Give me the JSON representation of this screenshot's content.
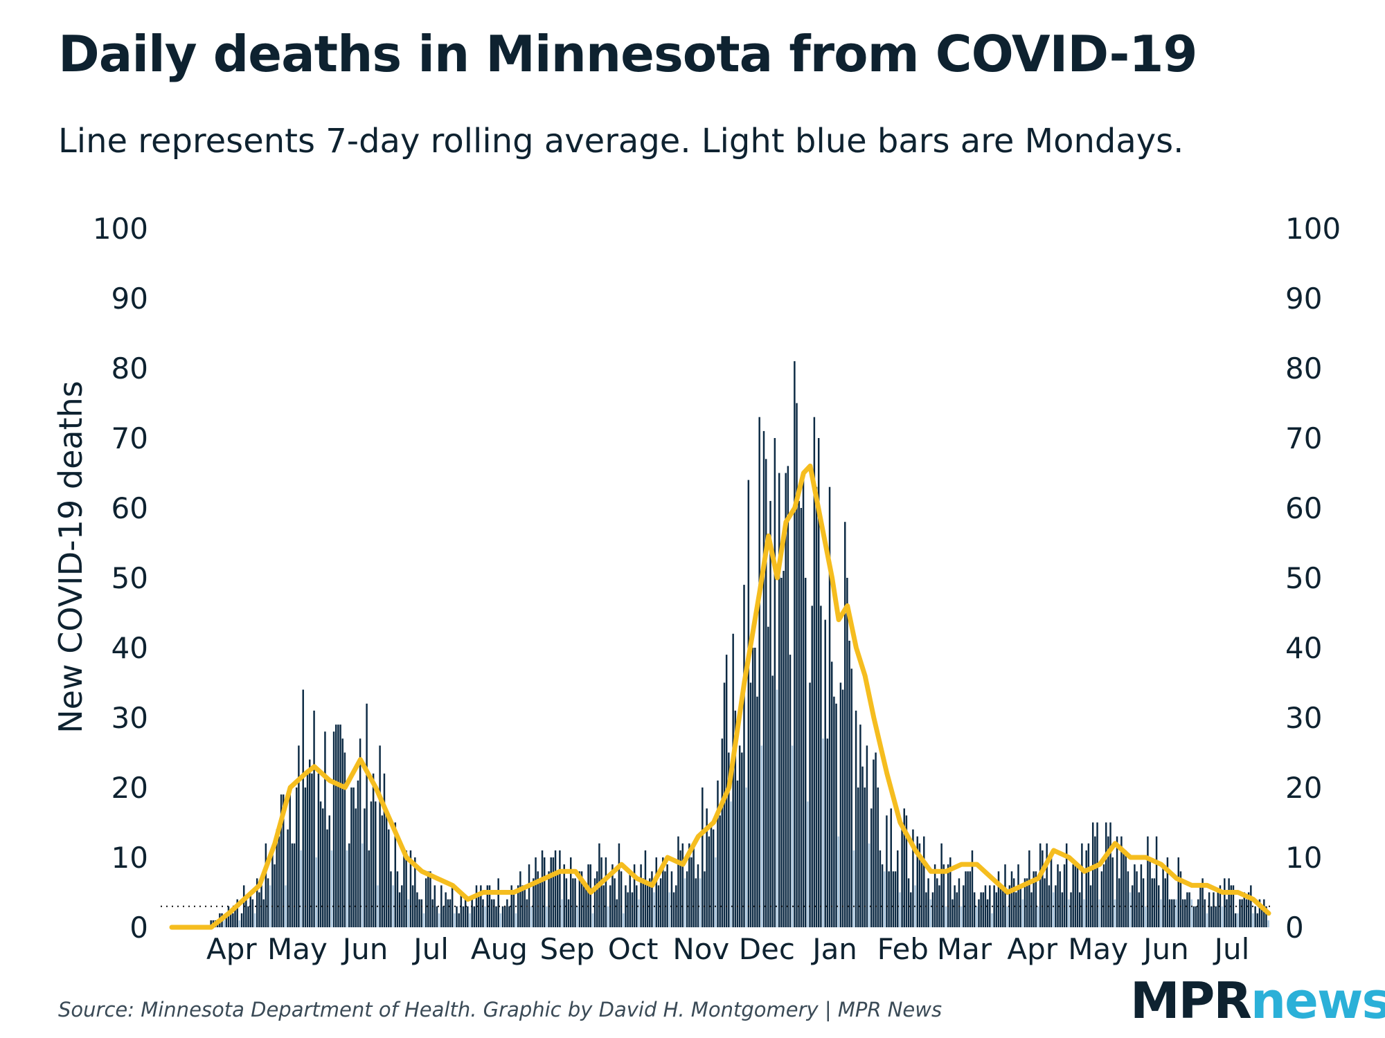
{
  "title": "Daily deaths in Minnesota from COVID-19",
  "subtitle": "Line represents 7-day rolling average. Light blue bars are Mondays.",
  "source": "Source: Minnesota Department of Health. Graphic by David H. Montgomery | MPR News",
  "logo": {
    "mpr": "MPR",
    "news": "news"
  },
  "colors": {
    "bar": "#0c2a44",
    "monday_bar": "#a9c6df",
    "line": "#f5bd1f",
    "text": "#0e2230",
    "logo_accent": "#2bb0d8"
  },
  "chart_data": {
    "type": "bar",
    "ylabel": "New COVID-19 deaths",
    "ylim": [
      0,
      100
    ],
    "yticks": [
      0,
      10,
      20,
      30,
      40,
      50,
      60,
      70,
      80,
      90,
      100
    ],
    "secondary_yaxis": true,
    "x_tick_labels": [
      "Apr",
      "May",
      "Jun",
      "Jul",
      "Aug",
      "Sep",
      "Oct",
      "Nov",
      "Dec",
      "Jan",
      "Feb",
      "Mar",
      "Apr",
      "May",
      "Jun",
      "Jul"
    ],
    "x_tick_dates": [
      "2020-04-01",
      "2020-05-01",
      "2020-06-01",
      "2020-07-01",
      "2020-08-01",
      "2020-09-01",
      "2020-10-01",
      "2020-11-01",
      "2020-12-01",
      "2021-01-01",
      "2021-02-01",
      "2021-03-01",
      "2021-04-01",
      "2021-05-01",
      "2021-06-01",
      "2021-07-01"
    ],
    "date_range": [
      "2020-03-06",
      "2021-07-19"
    ],
    "reference_line": {
      "y": 3,
      "style": "dotted"
    },
    "series": [
      {
        "kind": "bar",
        "anchors": [
          [
            "2020-03-06",
            0
          ],
          [
            "2020-03-20",
            0
          ],
          [
            "2020-03-25",
            1
          ],
          [
            "2020-04-01",
            2
          ],
          [
            "2020-04-08",
            4
          ],
          [
            "2020-04-15",
            6
          ],
          [
            "2020-04-22",
            12
          ],
          [
            "2020-04-29",
            20
          ],
          [
            "2020-05-06",
            24
          ],
          [
            "2020-05-13",
            23
          ],
          [
            "2020-05-20",
            20
          ],
          [
            "2020-05-27",
            24
          ],
          [
            "2020-06-03",
            22
          ],
          [
            "2020-06-10",
            17
          ],
          [
            "2020-06-17",
            10
          ],
          [
            "2020-06-24",
            8
          ],
          [
            "2020-07-01",
            6
          ],
          [
            "2020-07-08",
            6
          ],
          [
            "2020-07-15",
            4
          ],
          [
            "2020-07-22",
            5
          ],
          [
            "2020-07-29",
            5
          ],
          [
            "2020-08-05",
            5
          ],
          [
            "2020-08-12",
            6
          ],
          [
            "2020-08-19",
            7
          ],
          [
            "2020-08-26",
            8
          ],
          [
            "2020-09-02",
            7
          ],
          [
            "2020-09-09",
            6
          ],
          [
            "2020-09-16",
            8
          ],
          [
            "2020-09-23",
            9
          ],
          [
            "2020-09-30",
            7
          ],
          [
            "2020-10-07",
            8
          ],
          [
            "2020-10-14",
            10
          ],
          [
            "2020-10-21",
            10
          ],
          [
            "2020-10-28",
            13
          ],
          [
            "2020-11-04",
            15
          ],
          [
            "2020-11-11",
            22
          ],
          [
            "2020-11-18",
            34
          ],
          [
            "2020-11-25",
            45
          ],
          [
            "2020-12-01",
            55
          ],
          [
            "2020-12-07",
            58
          ],
          [
            "2020-12-13",
            63
          ],
          [
            "2020-12-19",
            58
          ],
          [
            "2020-12-25",
            50
          ],
          [
            "2021-01-01",
            45
          ],
          [
            "2021-01-08",
            38
          ],
          [
            "2021-01-15",
            28
          ],
          [
            "2021-01-22",
            20
          ],
          [
            "2021-01-29",
            14
          ],
          [
            "2021-02-05",
            11
          ],
          [
            "2021-02-12",
            9
          ],
          [
            "2021-02-19",
            8
          ],
          [
            "2021-02-26",
            8
          ],
          [
            "2021-03-05",
            8
          ],
          [
            "2021-03-12",
            7
          ],
          [
            "2021-03-19",
            6
          ],
          [
            "2021-03-26",
            7
          ],
          [
            "2021-04-02",
            8
          ],
          [
            "2021-04-09",
            10
          ],
          [
            "2021-04-16",
            10
          ],
          [
            "2021-04-23",
            9
          ],
          [
            "2021-04-30",
            10
          ],
          [
            "2021-05-07",
            11
          ],
          [
            "2021-05-14",
            10
          ],
          [
            "2021-05-21",
            9
          ],
          [
            "2021-05-28",
            9
          ],
          [
            "2021-06-04",
            7
          ],
          [
            "2021-06-11",
            7
          ],
          [
            "2021-06-18",
            6
          ],
          [
            "2021-06-25",
            5
          ],
          [
            "2021-07-02",
            5
          ],
          [
            "2021-07-09",
            4
          ],
          [
            "2021-07-19",
            3
          ]
        ]
      },
      {
        "kind": "line",
        "rolling_days": 7,
        "points": [
          [
            "2020-03-06",
            0
          ],
          [
            "2020-03-24",
            0
          ],
          [
            "2020-04-01",
            2
          ],
          [
            "2020-04-08",
            4
          ],
          [
            "2020-04-15",
            6
          ],
          [
            "2020-04-22",
            12
          ],
          [
            "2020-04-29",
            20
          ],
          [
            "2020-05-06",
            22
          ],
          [
            "2020-05-10",
            23
          ],
          [
            "2020-05-17",
            21
          ],
          [
            "2020-05-24",
            20
          ],
          [
            "2020-05-31",
            24
          ],
          [
            "2020-06-07",
            20
          ],
          [
            "2020-06-14",
            15
          ],
          [
            "2020-06-21",
            10
          ],
          [
            "2020-06-28",
            8
          ],
          [
            "2020-07-05",
            7
          ],
          [
            "2020-07-12",
            6
          ],
          [
            "2020-07-19",
            4
          ],
          [
            "2020-07-26",
            5
          ],
          [
            "2020-08-02",
            5
          ],
          [
            "2020-08-09",
            5
          ],
          [
            "2020-08-16",
            6
          ],
          [
            "2020-08-23",
            7
          ],
          [
            "2020-08-30",
            8
          ],
          [
            "2020-09-06",
            8
          ],
          [
            "2020-09-13",
            5
          ],
          [
            "2020-09-20",
            7
          ],
          [
            "2020-09-27",
            9
          ],
          [
            "2020-10-04",
            7
          ],
          [
            "2020-10-11",
            6
          ],
          [
            "2020-10-18",
            10
          ],
          [
            "2020-10-25",
            9
          ],
          [
            "2020-11-01",
            13
          ],
          [
            "2020-11-08",
            15
          ],
          [
            "2020-11-15",
            20
          ],
          [
            "2020-11-22",
            35
          ],
          [
            "2020-11-29",
            48
          ],
          [
            "2020-12-03",
            56
          ],
          [
            "2020-12-07",
            50
          ],
          [
            "2020-12-11",
            58
          ],
          [
            "2020-12-15",
            60
          ],
          [
            "2020-12-19",
            65
          ],
          [
            "2020-12-22",
            66
          ],
          [
            "2020-12-27",
            58
          ],
          [
            "2021-01-01",
            50
          ],
          [
            "2021-01-04",
            44
          ],
          [
            "2021-01-08",
            46
          ],
          [
            "2021-01-12",
            40
          ],
          [
            "2021-01-16",
            36
          ],
          [
            "2021-01-20",
            30
          ],
          [
            "2021-01-26",
            22
          ],
          [
            "2021-02-01",
            15
          ],
          [
            "2021-02-08",
            11
          ],
          [
            "2021-02-15",
            8
          ],
          [
            "2021-02-22",
            8
          ],
          [
            "2021-03-01",
            9
          ],
          [
            "2021-03-08",
            9
          ],
          [
            "2021-03-15",
            7
          ],
          [
            "2021-03-22",
            5
          ],
          [
            "2021-03-29",
            6
          ],
          [
            "2021-04-05",
            7
          ],
          [
            "2021-04-12",
            11
          ],
          [
            "2021-04-19",
            10
          ],
          [
            "2021-04-26",
            8
          ],
          [
            "2021-05-03",
            9
          ],
          [
            "2021-05-10",
            12
          ],
          [
            "2021-05-17",
            10
          ],
          [
            "2021-05-24",
            10
          ],
          [
            "2021-05-31",
            9
          ],
          [
            "2021-06-07",
            7
          ],
          [
            "2021-06-14",
            6
          ],
          [
            "2021-06-21",
            6
          ],
          [
            "2021-06-28",
            5
          ],
          [
            "2021-07-05",
            5
          ],
          [
            "2021-07-12",
            4
          ],
          [
            "2021-07-19",
            2
          ]
        ]
      }
    ]
  }
}
